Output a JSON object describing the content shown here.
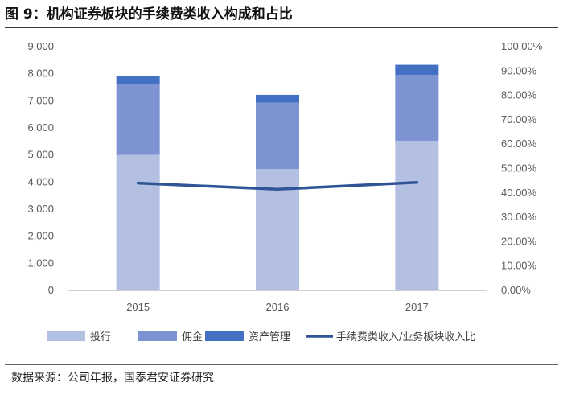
{
  "figure_title": "图 9：机构证券板块的手续费类收入构成和占比",
  "source_note": "数据来源：公司年报，国泰君安证券研究",
  "chart_data": {
    "type": "bar",
    "stacked": true,
    "categories": [
      "2015",
      "2016",
      "2017"
    ],
    "series": [
      {
        "name": "投行",
        "axis": "left",
        "color": "#b4c0e2",
        "values": [
          5000,
          4480,
          5520
        ]
      },
      {
        "name": "佣金",
        "axis": "left",
        "color": "#7d93d2",
        "values": [
          2620,
          2450,
          2440
        ]
      },
      {
        "name": "资产管理",
        "axis": "left",
        "color": "#4470c4",
        "values": [
          280,
          290,
          370
        ]
      },
      {
        "name": "手续费类收入/业务板块收入比",
        "axis": "right",
        "type": "line",
        "color": "#2f5597",
        "values": [
          0.44,
          0.415,
          0.443
        ]
      }
    ],
    "y_left": {
      "min": 0,
      "max": 9000,
      "step": 1000,
      "tick_labels": [
        "0",
        "1,000",
        "2,000",
        "3,000",
        "4,000",
        "5,000",
        "6,000",
        "7,000",
        "8,000",
        "9,000"
      ]
    },
    "y_right": {
      "min": 0,
      "max": 1,
      "step": 0.1,
      "tick_labels": [
        "0.00%",
        "10.00%",
        "20.00%",
        "30.00%",
        "40.00%",
        "50.00%",
        "60.00%",
        "70.00%",
        "80.00%",
        "90.00%",
        "100.00%"
      ]
    },
    "legend_position": "bottom",
    "grid": false
  }
}
